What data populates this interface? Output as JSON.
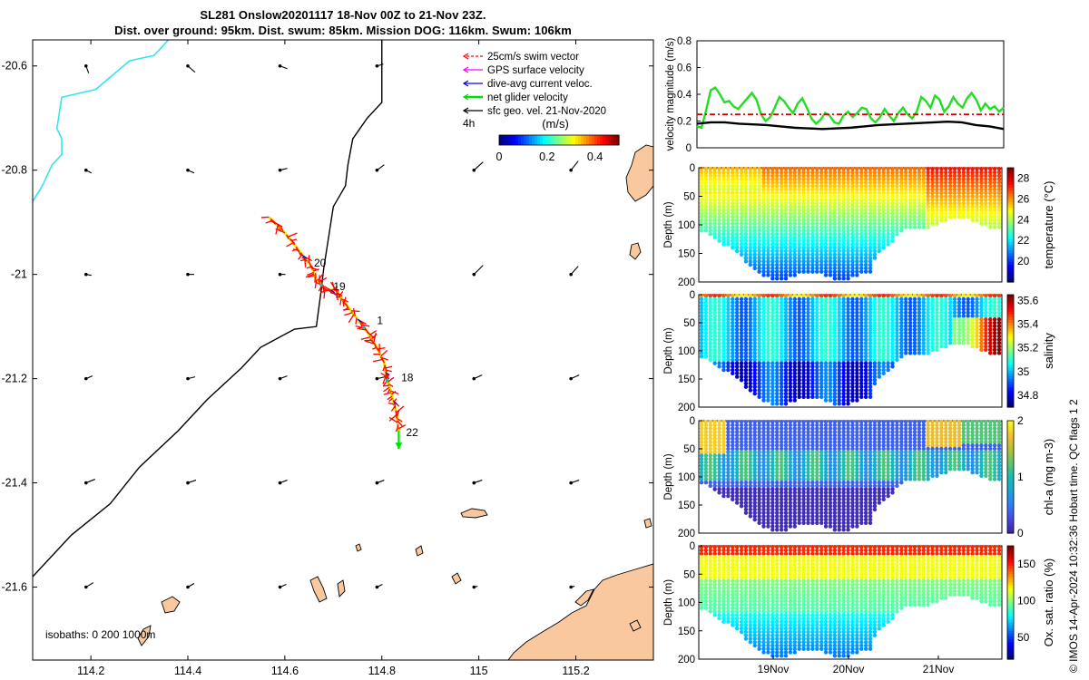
{
  "header": {
    "line1": "SL281 Onslow20201117 18-Nov 00Z to 21-Nov 23Z.",
    "line2": "Dist. over ground: 95km. Dist. swum: 85km. Mission DOG: 116km. Swum: 106km"
  },
  "colors": {
    "swim": "#ff0000",
    "gps": "#ff00ff",
    "current": "#0000ff",
    "net": "#00dd00",
    "geo": "#000000",
    "land": "#f9c89e",
    "coast": "#33e5f0",
    "track": "#e8e800"
  },
  "chart_data": [
    {
      "type": "map",
      "xlabel": "longitude",
      "ylabel": "latitude",
      "xlim": [
        114.08,
        115.36
      ],
      "ylim": [
        -21.74,
        -20.55
      ],
      "x_ticks": [
        "114.2",
        "114.4",
        "114.6",
        "114.8",
        "115",
        "115.2"
      ],
      "x_tick_values": [
        114.2,
        114.4,
        114.6,
        114.8,
        115.0,
        115.2
      ],
      "y_ticks": [
        "-20.6",
        "-20.8",
        "-21",
        "-21.2",
        "-21.4",
        "-21.6"
      ],
      "y_tick_values": [
        -20.6,
        -20.8,
        -21.0,
        -21.2,
        -21.4,
        -21.6
      ],
      "legend": [
        {
          "label": "25cm/s swim vector",
          "color": "#ff0000"
        },
        {
          "label": "GPS surface velocity",
          "color": "#ff00ff"
        },
        {
          "label": "dive-avg current veloc.",
          "color": "#0000ff"
        },
        {
          "label": "net glider velocity",
          "color": "#00dd00"
        },
        {
          "label": "sfc geo. vel. 21-Nov-2020",
          "color": "#000000"
        }
      ],
      "legend_note": "4h",
      "colorbar": {
        "label": "(m/s)",
        "ticks": [
          "0",
          "0.2",
          "0.4"
        ],
        "range": [
          0,
          0.5
        ]
      },
      "isobath_text": "isobaths: 0   200  1000m",
      "day_labels": [
        {
          "text": "20",
          "lon": 114.66,
          "lat": -20.985
        },
        {
          "text": "19",
          "lon": 114.7,
          "lat": -21.03
        },
        {
          "text": "1",
          "lon": 114.79,
          "lat": -21.095
        },
        {
          "text": "18",
          "lon": 114.84,
          "lat": -21.205
        },
        {
          "text": "22",
          "lon": 114.85,
          "lat": -21.31
        }
      ],
      "track": [
        [
          114.567,
          -20.89
        ],
        [
          114.6,
          -20.92
        ],
        [
          114.63,
          -20.955
        ],
        [
          114.655,
          -20.985
        ],
        [
          114.665,
          -21.01
        ],
        [
          114.685,
          -21.03
        ],
        [
          114.705,
          -21.03
        ],
        [
          114.72,
          -21.05
        ],
        [
          114.745,
          -21.08
        ],
        [
          114.77,
          -21.11
        ],
        [
          114.79,
          -21.14
        ],
        [
          114.805,
          -21.17
        ],
        [
          114.81,
          -21.2
        ],
        [
          114.82,
          -21.23
        ],
        [
          114.83,
          -21.265
        ],
        [
          114.835,
          -21.3
        ]
      ],
      "net_velocity": {
        "lon": 114.835,
        "lat": -21.3,
        "dlon": 0,
        "dlat": -0.035
      },
      "shelf_isobath": [
        [
          114.08,
          -21.58
        ],
        [
          114.16,
          -21.5
        ],
        [
          114.24,
          -21.44
        ],
        [
          114.3,
          -21.37
        ],
        [
          114.38,
          -21.3
        ],
        [
          114.44,
          -21.24
        ],
        [
          114.51,
          -21.18
        ],
        [
          114.55,
          -21.14
        ],
        [
          114.59,
          -21.12
        ],
        [
          114.62,
          -21.105
        ],
        [
          114.665,
          -21.1
        ],
        [
          114.675,
          -21.03
        ],
        [
          114.68,
          -20.99
        ],
        [
          114.69,
          -20.93
        ],
        [
          114.7,
          -20.87
        ],
        [
          114.725,
          -20.83
        ],
        [
          114.73,
          -20.79
        ],
        [
          114.74,
          -20.74
        ],
        [
          114.77,
          -20.7
        ],
        [
          114.8,
          -20.67
        ],
        [
          114.8,
          -20.55
        ]
      ],
      "inshore_isobath": [
        [
          114.08,
          -20.86
        ],
        [
          114.1,
          -20.83
        ],
        [
          114.12,
          -20.79
        ],
        [
          114.14,
          -20.77
        ],
        [
          114.14,
          -20.74
        ],
        [
          114.13,
          -20.72
        ],
        [
          114.14,
          -20.66
        ],
        [
          114.21,
          -20.645
        ],
        [
          114.28,
          -20.59
        ],
        [
          114.33,
          -20.58
        ],
        [
          114.36,
          -20.55
        ]
      ],
      "geo_vectors": [
        {
          "lon": 114.19,
          "lat": -20.6,
          "dx": 3,
          "dy": 8
        },
        {
          "lon": 114.4,
          "lat": -20.6,
          "dx": 8,
          "dy": 7
        },
        {
          "lon": 114.59,
          "lat": -20.6,
          "dx": 8,
          "dy": 3
        },
        {
          "lon": 114.79,
          "lat": -20.6,
          "dx": 7,
          "dy": -2
        },
        {
          "lon": 114.19,
          "lat": -20.8,
          "dx": 6,
          "dy": 3
        },
        {
          "lon": 114.4,
          "lat": -20.8,
          "dx": 7,
          "dy": 3
        },
        {
          "lon": 114.59,
          "lat": -20.8,
          "dx": 8,
          "dy": -2
        },
        {
          "lon": 114.79,
          "lat": -20.8,
          "dx": 8,
          "dy": -6
        },
        {
          "lon": 114.99,
          "lat": -20.8,
          "dx": 10,
          "dy": -9
        },
        {
          "lon": 115.19,
          "lat": -20.8,
          "dx": 8,
          "dy": -10
        },
        {
          "lon": 114.19,
          "lat": -21.0,
          "dx": 6,
          "dy": 1
        },
        {
          "lon": 114.4,
          "lat": -21.0,
          "dx": 7,
          "dy": 0
        },
        {
          "lon": 114.59,
          "lat": -21.0,
          "dx": 6,
          "dy": 0
        },
        {
          "lon": 114.99,
          "lat": -21.0,
          "dx": 10,
          "dy": -10
        },
        {
          "lon": 115.19,
          "lat": -21.0,
          "dx": 8,
          "dy": -9
        },
        {
          "lon": 114.19,
          "lat": -21.2,
          "dx": 7,
          "dy": -3
        },
        {
          "lon": 114.4,
          "lat": -21.2,
          "dx": 8,
          "dy": -2
        },
        {
          "lon": 114.59,
          "lat": -21.2,
          "dx": 8,
          "dy": -3
        },
        {
          "lon": 114.79,
          "lat": -21.2,
          "dx": 9,
          "dy": -2
        },
        {
          "lon": 114.99,
          "lat": -21.2,
          "dx": 9,
          "dy": -4
        },
        {
          "lon": 115.19,
          "lat": -21.2,
          "dx": 9,
          "dy": -4
        },
        {
          "lon": 114.19,
          "lat": -21.4,
          "dx": 10,
          "dy": -4
        },
        {
          "lon": 114.4,
          "lat": -21.4,
          "dx": 9,
          "dy": -3
        },
        {
          "lon": 114.59,
          "lat": -21.4,
          "dx": 8,
          "dy": -3
        },
        {
          "lon": 114.79,
          "lat": -21.4,
          "dx": 8,
          "dy": -3
        },
        {
          "lon": 114.99,
          "lat": -21.4,
          "dx": 9,
          "dy": -3
        },
        {
          "lon": 115.19,
          "lat": -21.4,
          "dx": 9,
          "dy": -3
        },
        {
          "lon": 114.19,
          "lat": -21.6,
          "dx": 8,
          "dy": -5
        },
        {
          "lon": 114.4,
          "lat": -21.6,
          "dx": 7,
          "dy": -4
        },
        {
          "lon": 114.59,
          "lat": -21.6,
          "dx": 7,
          "dy": -3
        },
        {
          "lon": 114.79,
          "lat": -21.6,
          "dx": 6,
          "dy": -3
        },
        {
          "lon": 114.99,
          "lat": -21.6,
          "dx": 4,
          "dy": -1
        },
        {
          "lon": 115.19,
          "lat": -21.6,
          "dx": 4,
          "dy": -1
        }
      ]
    },
    {
      "type": "line",
      "ylabel": "velocity magnitude (m/s)",
      "ylim": [
        0,
        0.8
      ],
      "y_ticks": [
        "0",
        "0.2",
        "0.4",
        "0.6",
        "0.8"
      ],
      "y_tick_values": [
        0,
        0.2,
        0.4,
        0.6,
        0.8
      ],
      "series": [
        {
          "name": "net glider velocity",
          "color": "#22dd22",
          "values": [
            0.16,
            0.15,
            0.28,
            0.43,
            0.45,
            0.4,
            0.34,
            0.35,
            0.31,
            0.29,
            0.33,
            0.37,
            0.41,
            0.36,
            0.25,
            0.2,
            0.23,
            0.3,
            0.38,
            0.35,
            0.3,
            0.26,
            0.33,
            0.37,
            0.3,
            0.22,
            0.18,
            0.21,
            0.26,
            0.24,
            0.19,
            0.18,
            0.24,
            0.27,
            0.23,
            0.26,
            0.3,
            0.29,
            0.22,
            0.19,
            0.23,
            0.29,
            0.24,
            0.2,
            0.26,
            0.3,
            0.25,
            0.22,
            0.27,
            0.38,
            0.35,
            0.3,
            0.39,
            0.36,
            0.27,
            0.31,
            0.38,
            0.33,
            0.3,
            0.37,
            0.41,
            0.36,
            0.28,
            0.33,
            0.29,
            0.31,
            0.27,
            0.3
          ]
        },
        {
          "name": "25cm/s swim",
          "color": "#dd0000",
          "dashed": true,
          "values": [
            0.25,
            0.25
          ]
        },
        {
          "name": "sfc geo. vel.",
          "color": "#000000",
          "values": [
            0.18,
            0.19,
            0.19,
            0.18,
            0.175,
            0.17,
            0.16,
            0.15,
            0.145,
            0.14,
            0.145,
            0.15,
            0.16,
            0.17,
            0.175,
            0.18,
            0.185,
            0.19,
            0.195,
            0.19,
            0.17,
            0.16,
            0.14
          ]
        }
      ]
    },
    {
      "type": "scatter",
      "name": "temperature",
      "ylabel": "Depth (m)",
      "colorbar_label": "temperature (°C)",
      "ylim": [
        200,
        0
      ],
      "y_ticks": [
        "0",
        "50",
        "100",
        "150",
        "200"
      ],
      "y_tick_values": [
        0,
        50,
        100,
        150,
        200
      ],
      "clim": [
        18,
        29
      ],
      "cbar_ticks": [
        "20",
        "22",
        "24",
        "26",
        "28"
      ],
      "cbar_tick_values": [
        20,
        22,
        24,
        26,
        28
      ]
    },
    {
      "type": "scatter",
      "name": "salinity",
      "ylabel": "Depth (m)",
      "colorbar_label": "salinity",
      "ylim": [
        200,
        0
      ],
      "y_ticks": [
        "0",
        "50",
        "100",
        "150",
        "200"
      ],
      "y_tick_values": [
        0,
        50,
        100,
        150,
        200
      ],
      "clim": [
        34.7,
        35.65
      ],
      "cbar_ticks": [
        "34.8",
        "35",
        "35.2",
        "35.4",
        "35.6"
      ],
      "cbar_tick_values": [
        34.8,
        35.0,
        35.2,
        35.4,
        35.6
      ]
    },
    {
      "type": "scatter",
      "name": "chla",
      "ylabel": "Depth (m)",
      "colorbar_label": "chl-a (mg m-3)",
      "ylim": [
        200,
        0
      ],
      "y_ticks": [
        "0",
        "50",
        "100",
        "150",
        "200"
      ],
      "y_tick_values": [
        0,
        50,
        100,
        150,
        200
      ],
      "clim": [
        0,
        2
      ],
      "cbar_ticks": [
        "0",
        "1",
        "2"
      ],
      "cbar_tick_values": [
        0,
        1,
        2
      ]
    },
    {
      "type": "scatter",
      "name": "oxygen",
      "ylabel": "Depth (m)",
      "colorbar_label": "Ox. sat. ratio (%)",
      "ylim": [
        200,
        0
      ],
      "y_ticks": [
        "0",
        "50",
        "100",
        "150",
        "200"
      ],
      "y_tick_values": [
        0,
        50,
        100,
        150,
        200
      ],
      "clim": [
        20,
        175
      ],
      "cbar_ticks": [
        "50",
        "100",
        "150"
      ],
      "cbar_tick_values": [
        50,
        100,
        150
      ],
      "x_ticks": [
        "19Nov",
        "20Nov",
        "21Nov"
      ],
      "x_tick_values": [
        1,
        2,
        3
      ]
    }
  ],
  "footer_note": "© IMOS 14-Apr-2024 10:32:36 Hobart time. QC flags 1  2"
}
